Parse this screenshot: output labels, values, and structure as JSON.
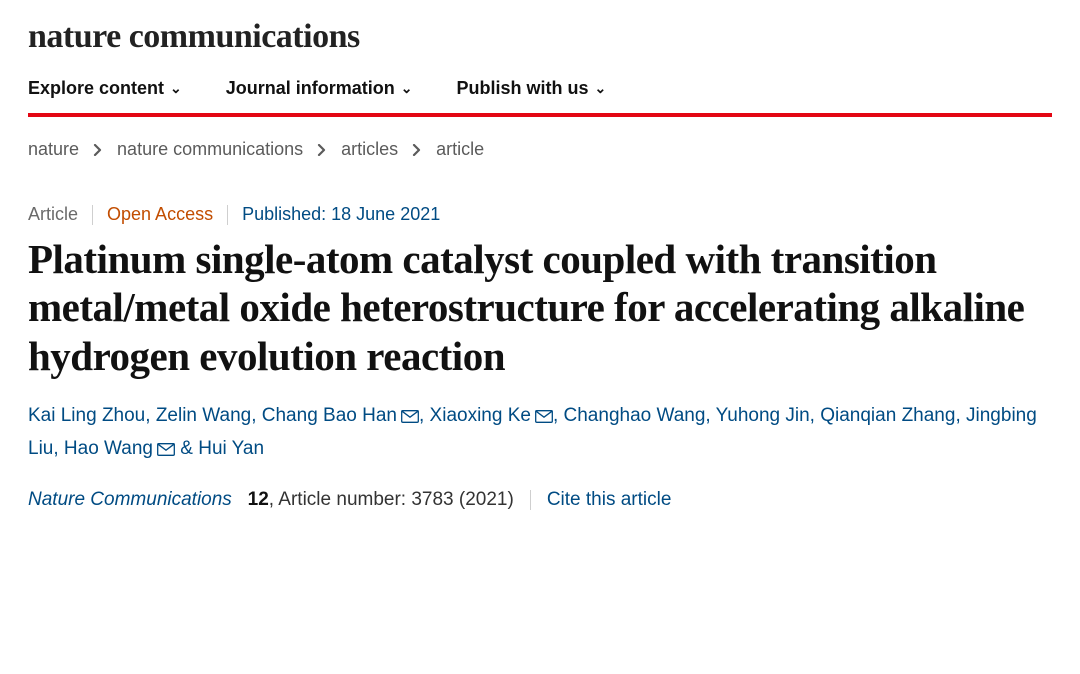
{
  "journal_name": "nature communications",
  "nav": {
    "items": [
      {
        "label": "Explore content"
      },
      {
        "label": "Journal information"
      },
      {
        "label": "Publish with us"
      }
    ]
  },
  "breadcrumbs": {
    "items": [
      "nature",
      "nature communications",
      "articles",
      "article"
    ]
  },
  "article": {
    "meta": {
      "type": "Article",
      "access": "Open Access",
      "published_label": "Published: 18 June 2021"
    },
    "title": "Platinum single-atom catalyst coupled with transition metal/metal oxide heterostructure for accelerating alkaline hydrogen evolution reaction",
    "authors": [
      {
        "name": "Kai Ling Zhou",
        "corresponding": false
      },
      {
        "name": "Zelin Wang",
        "corresponding": false
      },
      {
        "name": "Chang Bao Han",
        "corresponding": true
      },
      {
        "name": "Xiaoxing Ke",
        "corresponding": true
      },
      {
        "name": "Changhao Wang",
        "corresponding": false
      },
      {
        "name": "Yuhong Jin",
        "corresponding": false
      },
      {
        "name": "Qianqian Zhang",
        "corresponding": false
      },
      {
        "name": "Jingbing Liu",
        "corresponding": false
      },
      {
        "name": "Hao Wang",
        "corresponding": true
      },
      {
        "name": "Hui Yan",
        "corresponding": false
      }
    ],
    "citation": {
      "journal": "Nature Communications",
      "volume": "12",
      "article_number_label": ", Article number: 3783 (2021)",
      "cite_link": "Cite this article"
    }
  },
  "colors": {
    "accent_red": "#e30613",
    "link_blue": "#004b83",
    "oa_orange": "#c24d00",
    "text_gray": "#6a6a6a"
  }
}
